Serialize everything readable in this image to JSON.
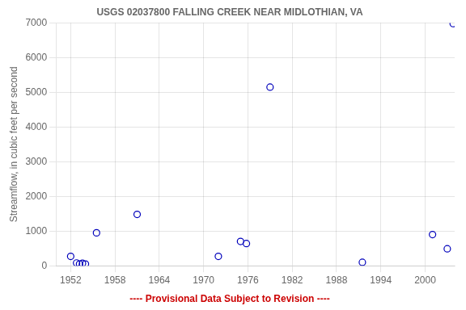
{
  "chart_data": {
    "type": "scatter",
    "title": "USGS 02037800 FALLING CREEK NEAR MIDLOTHIAN, VA",
    "ylabel": "Streamflow, in cubic feet per second",
    "annotations": [
      {
        "text": "---- Provisional Data Subject to Revision ----",
        "color": "#cc0000"
      }
    ],
    "x": [
      1952.0,
      1952.8,
      1953.2,
      1953.6,
      1954.0,
      1955.5,
      1961.0,
      1972.0,
      1975.0,
      1975.8,
      1979.0,
      1991.5,
      2001.0,
      2003.0,
      2003.8
    ],
    "values": [
      270,
      80,
      50,
      70,
      50,
      950,
      1480,
      270,
      700,
      640,
      5150,
      100,
      900,
      490,
      6980
    ],
    "color": "#0000bb",
    "marker": "circle",
    "xlim": [
      1950,
      2004
    ],
    "ylim": [
      0,
      7000
    ],
    "xticks": [
      1952,
      1958,
      1964,
      1970,
      1976,
      1982,
      1988,
      1994,
      2000
    ],
    "yticks": [
      0,
      1000,
      2000,
      3000,
      4000,
      5000,
      6000,
      7000
    ],
    "grid": true
  }
}
